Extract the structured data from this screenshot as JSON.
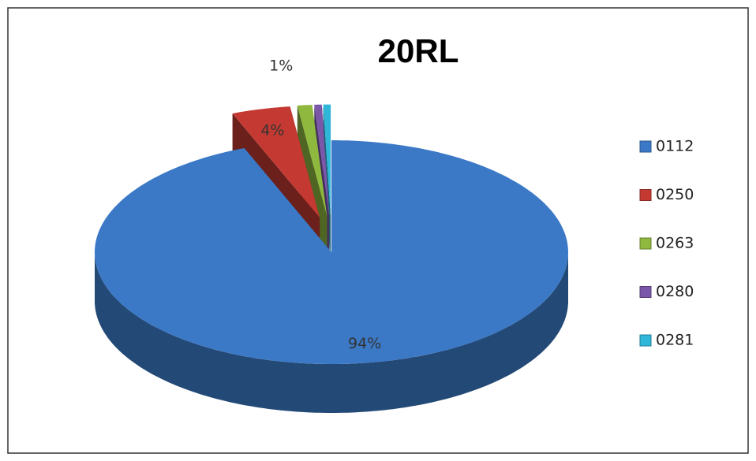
{
  "chart_data": {
    "type": "pie",
    "title": "20RL",
    "categories": [
      "0112",
      "0250",
      "0263",
      "0280",
      "0281"
    ],
    "values": [
      94,
      4,
      1,
      0.5,
      0.5
    ],
    "value_labels": [
      "94%",
      "4%",
      "1%",
      null,
      null
    ],
    "colors": [
      "#3b79c7",
      "#c43a33",
      "#8fb83f",
      "#7b57aa",
      "#2fb6d9"
    ],
    "legend": "right"
  }
}
